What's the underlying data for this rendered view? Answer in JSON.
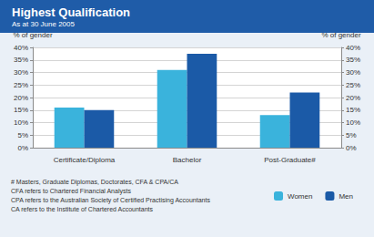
{
  "chart_data": {
    "type": "bar",
    "title": "Highest Qualification",
    "subtitle": "As at 30 June 2005",
    "y_label": "% of gender",
    "y2_label": "% of gender",
    "categories": [
      "Certificate/Diploma",
      "Bachelor",
      "Post-Graduate#"
    ],
    "series": [
      {
        "name": "Women",
        "color": "#3ab3dc",
        "values": [
          16,
          31,
          13
        ]
      },
      {
        "name": "Men",
        "color": "#1b5aa7",
        "values": [
          15,
          37.5,
          22
        ]
      }
    ],
    "ylim": [
      0,
      40
    ],
    "yticks": [
      {
        "value": 0,
        "label": "0%"
      },
      {
        "value": 5,
        "label": "5%"
      },
      {
        "value": 10,
        "label": "10%"
      },
      {
        "value": 15,
        "label": "15%"
      },
      {
        "value": 20,
        "label": "20%"
      },
      {
        "value": 25,
        "label": "25%"
      },
      {
        "value": 30,
        "label": "30%"
      },
      {
        "value": 35,
        "label": "35%"
      },
      {
        "value": 40,
        "label": "40%"
      }
    ],
    "y2lim": [
      0,
      40
    ],
    "y2ticks": [
      {
        "value": 0,
        "label": "0%"
      },
      {
        "value": 5,
        "label": "5%"
      },
      {
        "value": 10,
        "label": "10%"
      },
      {
        "value": 15,
        "label": "15%"
      },
      {
        "value": 20,
        "label": "20%"
      },
      {
        "value": 25,
        "label": "25%"
      },
      {
        "value": 30,
        "label": "30%"
      },
      {
        "value": 35,
        "label": "35%"
      },
      {
        "value": 40,
        "label": "40%"
      }
    ],
    "grid": true,
    "legend": "bottom right",
    "notes": [
      "# Masters, Graduate Diplomas, Doctorates, CFA & CPA/CA",
      "CFA refers to Chartered Financial Analysts",
      "CPA refers to the Australian Society of Certified Practising Accountants",
      "CA refers to the Institute of Chartered Accountants"
    ]
  }
}
